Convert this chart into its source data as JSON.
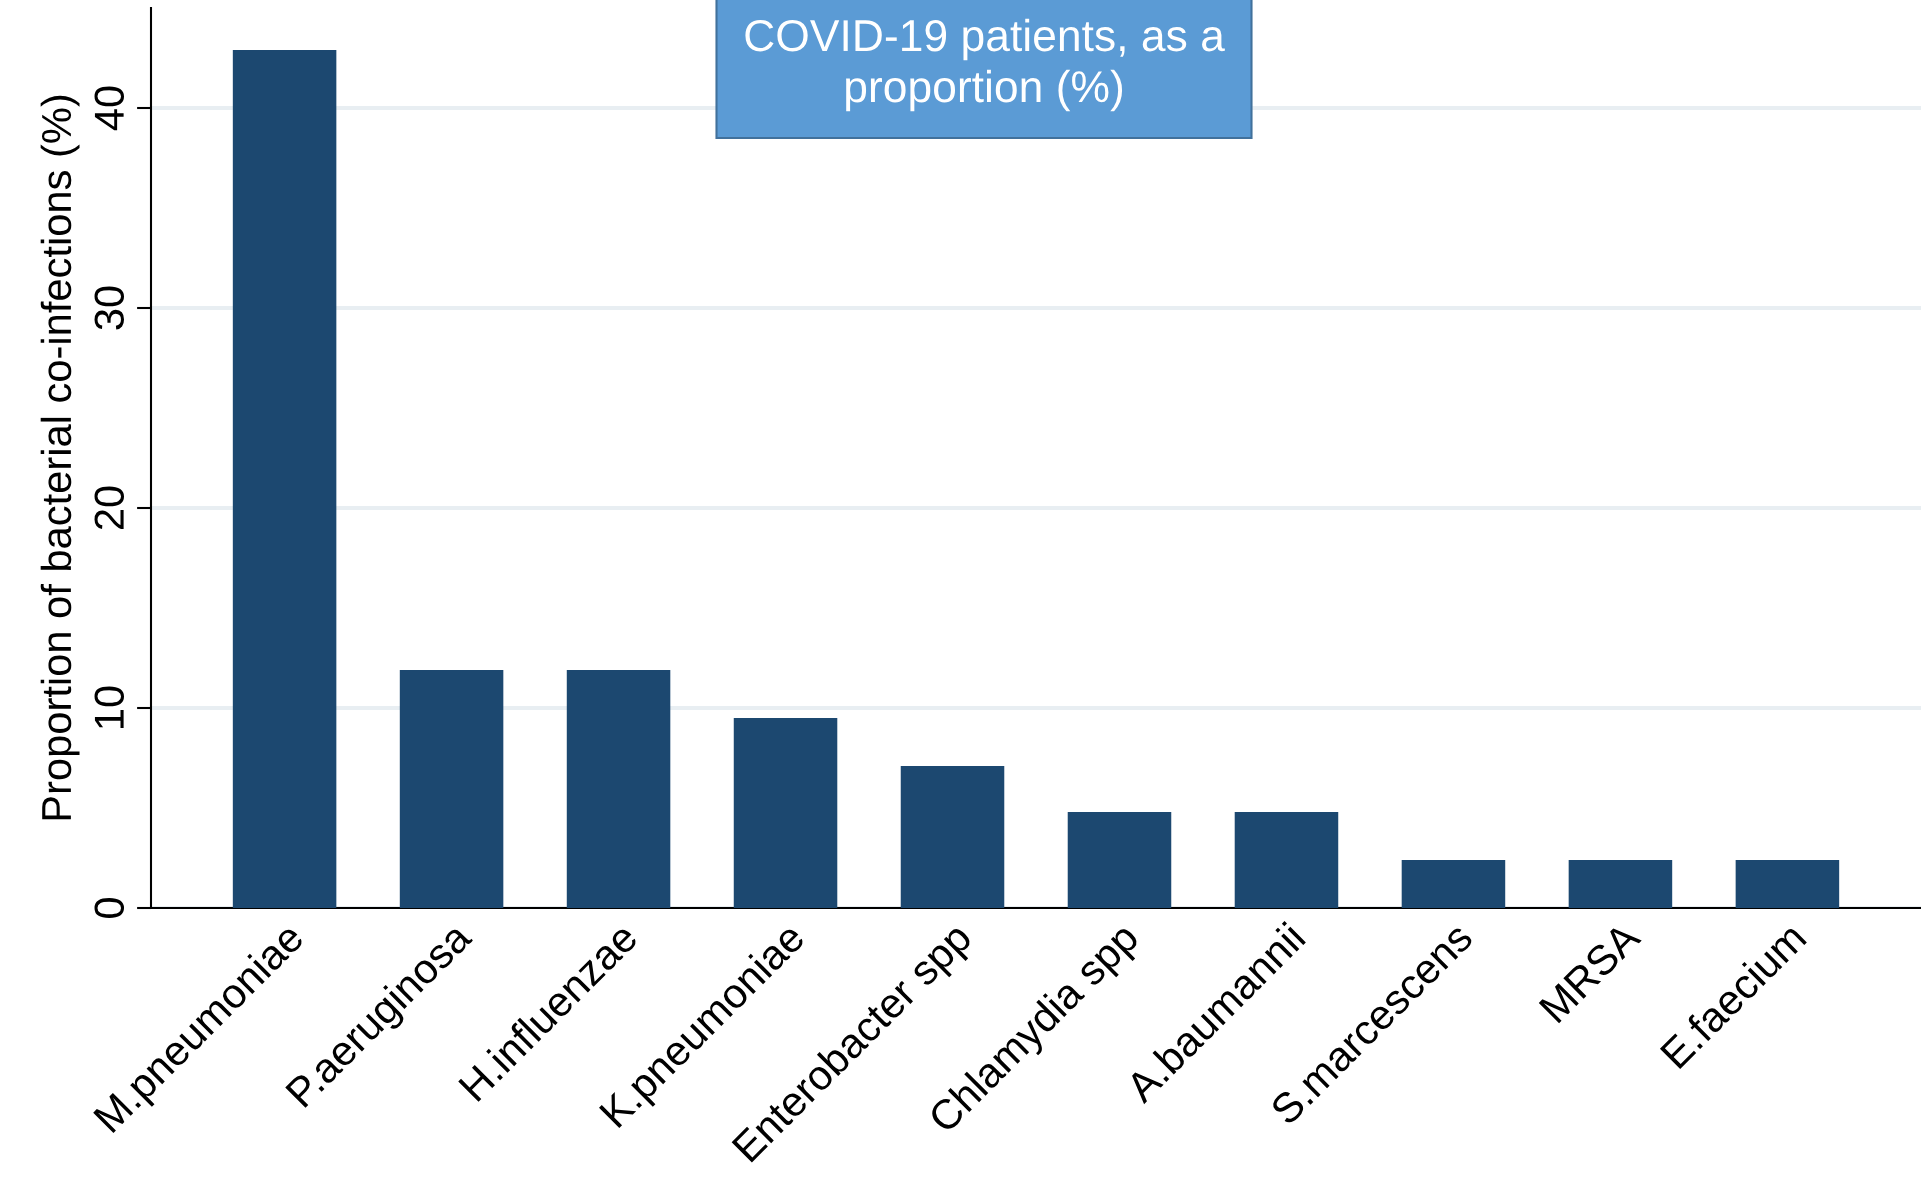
{
  "chart_data": {
    "type": "bar",
    "title": "COVID-19 patients, as a\nproportion (%)",
    "ylabel": "Proportion of bacterial co-infections (%)",
    "categories": [
      "M.pneumoniae",
      "P.aeruginosa",
      "H.influenzae",
      "K.pneumoniae",
      "Enterobacter spp",
      "Chlamydia spp",
      "A.baumannii",
      "S.marcescens",
      "MRSA",
      "E.faecium"
    ],
    "values": [
      42.9,
      11.9,
      11.9,
      9.5,
      7.1,
      4.8,
      4.8,
      2.4,
      2.4,
      2.4
    ],
    "color": "#1c4870",
    "ylim": [
      0,
      45
    ],
    "yticks": [
      0,
      10,
      20,
      30,
      40
    ],
    "grid": "y"
  }
}
